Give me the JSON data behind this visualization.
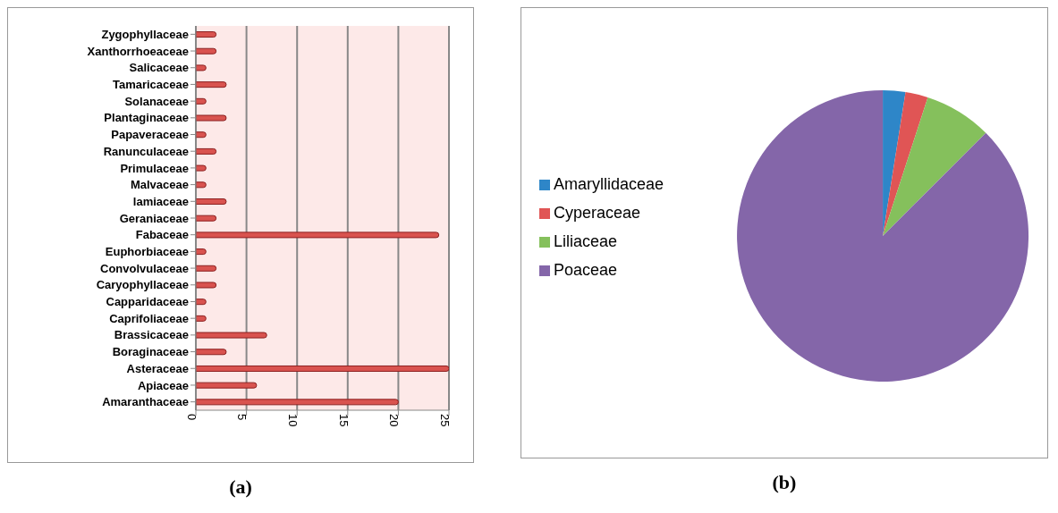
{
  "chart_data": [
    {
      "type": "bar",
      "title": "(a)",
      "orientation": "horizontal",
      "categories": [
        "Zygophyllaceae",
        "Xanthorrhoeaceae",
        "Salicaceae",
        "Tamaricaceae",
        "Solanaceae",
        "Plantaginaceae",
        "Papaveraceae",
        "Ranunculaceae",
        "Primulaceae",
        "Malvaceae",
        "lamiaceae",
        "Geraniaceae",
        "Fabaceae",
        "Euphorbiaceae",
        "Convolvulaceae",
        "Caryophyllaceae",
        "Capparidaceae",
        "Caprifoliaceae",
        "Brassicaceae",
        "Boraginaceae",
        "Asteraceae",
        "Apiaceae",
        "Amaranthaceae"
      ],
      "values": [
        2,
        2,
        1,
        3,
        1,
        3,
        1,
        2,
        1,
        1,
        3,
        2,
        24,
        1,
        2,
        2,
        1,
        1,
        7,
        3,
        25,
        6,
        20
      ],
      "color": "#d9534f",
      "xlim": [
        0,
        25
      ],
      "xticks": [
        0,
        5,
        10,
        15,
        20,
        25
      ],
      "grid": "x"
    },
    {
      "type": "pie",
      "title": "(b)",
      "categories": [
        "Amaryllidaceae",
        "Cyperaceae",
        "Liliaceae",
        "Poaceae"
      ],
      "values": [
        2.5,
        2.5,
        7.5,
        87.5
      ],
      "colors": [
        "#2e86c8",
        "#e05555",
        "#85c05c",
        "#8466a9"
      ],
      "legend": "left"
    }
  ]
}
